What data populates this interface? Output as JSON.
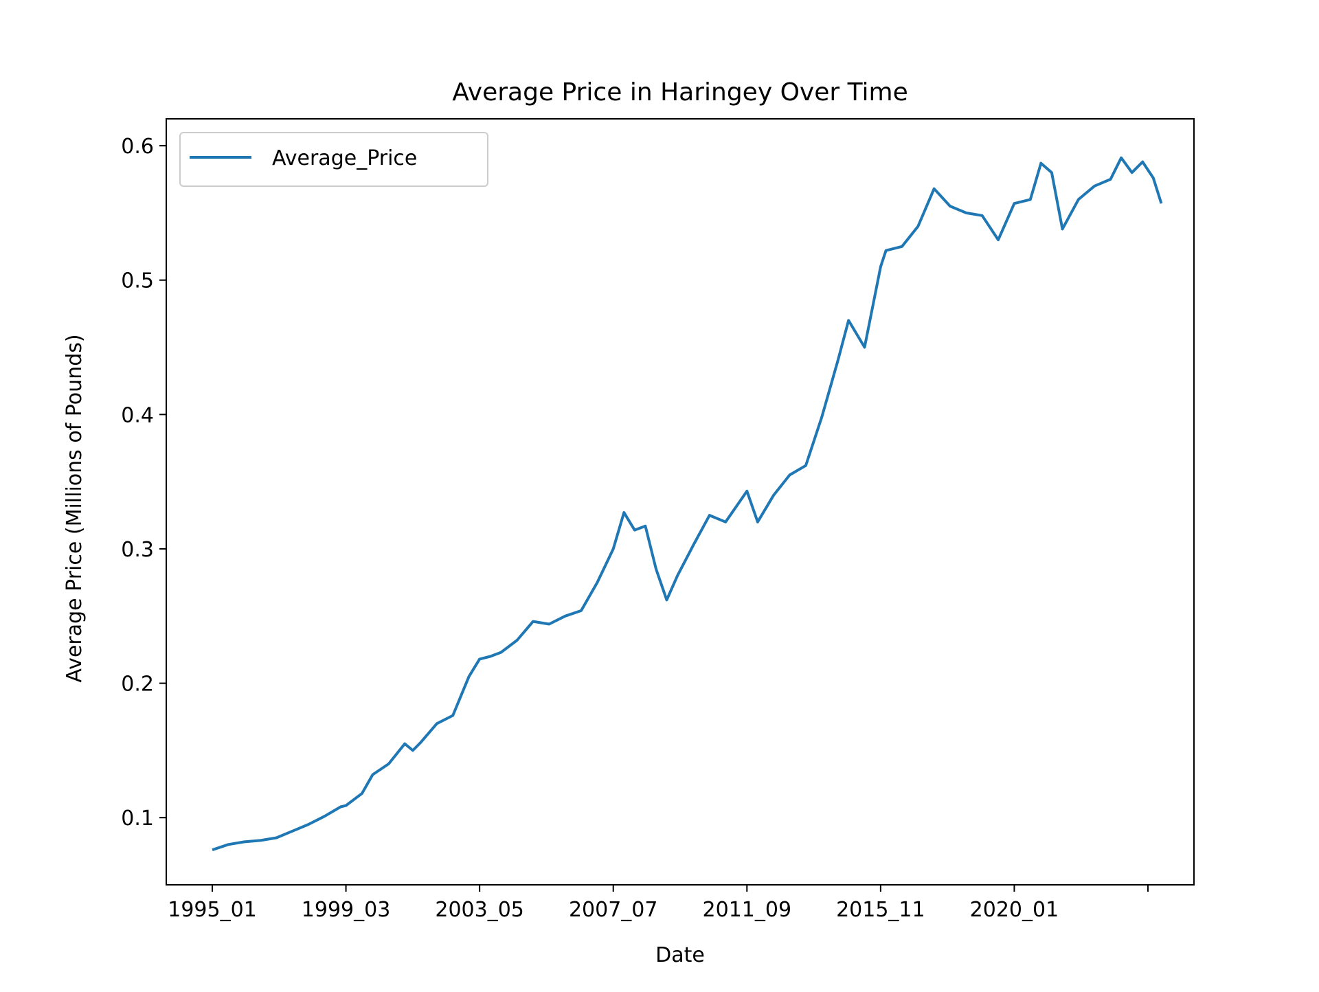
{
  "chart_data": {
    "type": "line",
    "title": "Average Price in Haringey Over Time",
    "xlabel": "Date",
    "ylabel": "Average Price (Millions of Pounds)",
    "x_tick_labels": [
      "1995_01",
      "1999_03",
      "2003_05",
      "2007_07",
      "2011_09",
      "2015_11",
      "2020_01",
      ""
    ],
    "y_tick_labels": [
      "0.1",
      "0.2",
      "0.3",
      "0.4",
      "0.5",
      "0.6"
    ],
    "ylim": [
      0.05,
      0.62
    ],
    "grid": false,
    "legend": {
      "position": "upper-left",
      "entries": [
        "Average_Price"
      ]
    },
    "colors": {
      "series": "#1f77b4",
      "axes": "#000000",
      "background": "#ffffff"
    },
    "series": [
      {
        "name": "Average_Price",
        "points": [
          [
            "1995_01",
            0.076
          ],
          [
            "1995_07",
            0.08
          ],
          [
            "1996_01",
            0.082
          ],
          [
            "1996_07",
            0.083
          ],
          [
            "1997_01",
            0.085
          ],
          [
            "1997_07",
            0.09
          ],
          [
            "1998_01",
            0.095
          ],
          [
            "1998_07",
            0.101
          ],
          [
            "1999_01",
            0.108
          ],
          [
            "1999_03",
            0.109
          ],
          [
            "1999_09",
            0.118
          ],
          [
            "2000_01",
            0.132
          ],
          [
            "2000_07",
            0.14
          ],
          [
            "2001_01",
            0.155
          ],
          [
            "2001_04",
            0.15
          ],
          [
            "2001_07",
            0.156
          ],
          [
            "2002_01",
            0.17
          ],
          [
            "2002_07",
            0.176
          ],
          [
            "2003_01",
            0.205
          ],
          [
            "2003_05",
            0.218
          ],
          [
            "2003_09",
            0.22
          ],
          [
            "2004_01",
            0.223
          ],
          [
            "2004_07",
            0.232
          ],
          [
            "2005_01",
            0.246
          ],
          [
            "2005_07",
            0.244
          ],
          [
            "2006_01",
            0.25
          ],
          [
            "2006_07",
            0.254
          ],
          [
            "2007_01",
            0.275
          ],
          [
            "2007_07",
            0.3
          ],
          [
            "2007_11",
            0.327
          ],
          [
            "2008_03",
            0.314
          ],
          [
            "2008_07",
            0.317
          ],
          [
            "2008_11",
            0.285
          ],
          [
            "2009_03",
            0.262
          ],
          [
            "2009_07",
            0.28
          ],
          [
            "2010_01",
            0.303
          ],
          [
            "2010_07",
            0.325
          ],
          [
            "2011_01",
            0.32
          ],
          [
            "2011_09",
            0.343
          ],
          [
            "2012_01",
            0.32
          ],
          [
            "2012_07",
            0.34
          ],
          [
            "2013_01",
            0.355
          ],
          [
            "2013_07",
            0.362
          ],
          [
            "2014_01",
            0.398
          ],
          [
            "2014_07",
            0.44
          ],
          [
            "2014_11",
            0.47
          ],
          [
            "2015_05",
            0.45
          ],
          [
            "2015_11",
            0.51
          ],
          [
            "2016_01",
            0.522
          ],
          [
            "2016_07",
            0.525
          ],
          [
            "2017_01",
            0.54
          ],
          [
            "2017_07",
            0.568
          ],
          [
            "2018_01",
            0.555
          ],
          [
            "2018_07",
            0.55
          ],
          [
            "2019_01",
            0.548
          ],
          [
            "2019_07",
            0.53
          ],
          [
            "2020_01",
            0.557
          ],
          [
            "2020_07",
            0.56
          ],
          [
            "2020_11",
            0.587
          ],
          [
            "2021_03",
            0.58
          ],
          [
            "2021_07",
            0.538
          ],
          [
            "2022_01",
            0.56
          ],
          [
            "2022_07",
            0.57
          ],
          [
            "2023_01",
            0.575
          ],
          [
            "2023_05",
            0.591
          ],
          [
            "2023_09",
            0.58
          ],
          [
            "2024_01",
            0.588
          ],
          [
            "2024_05",
            0.576
          ],
          [
            "2024_08",
            0.557
          ]
        ]
      }
    ]
  }
}
